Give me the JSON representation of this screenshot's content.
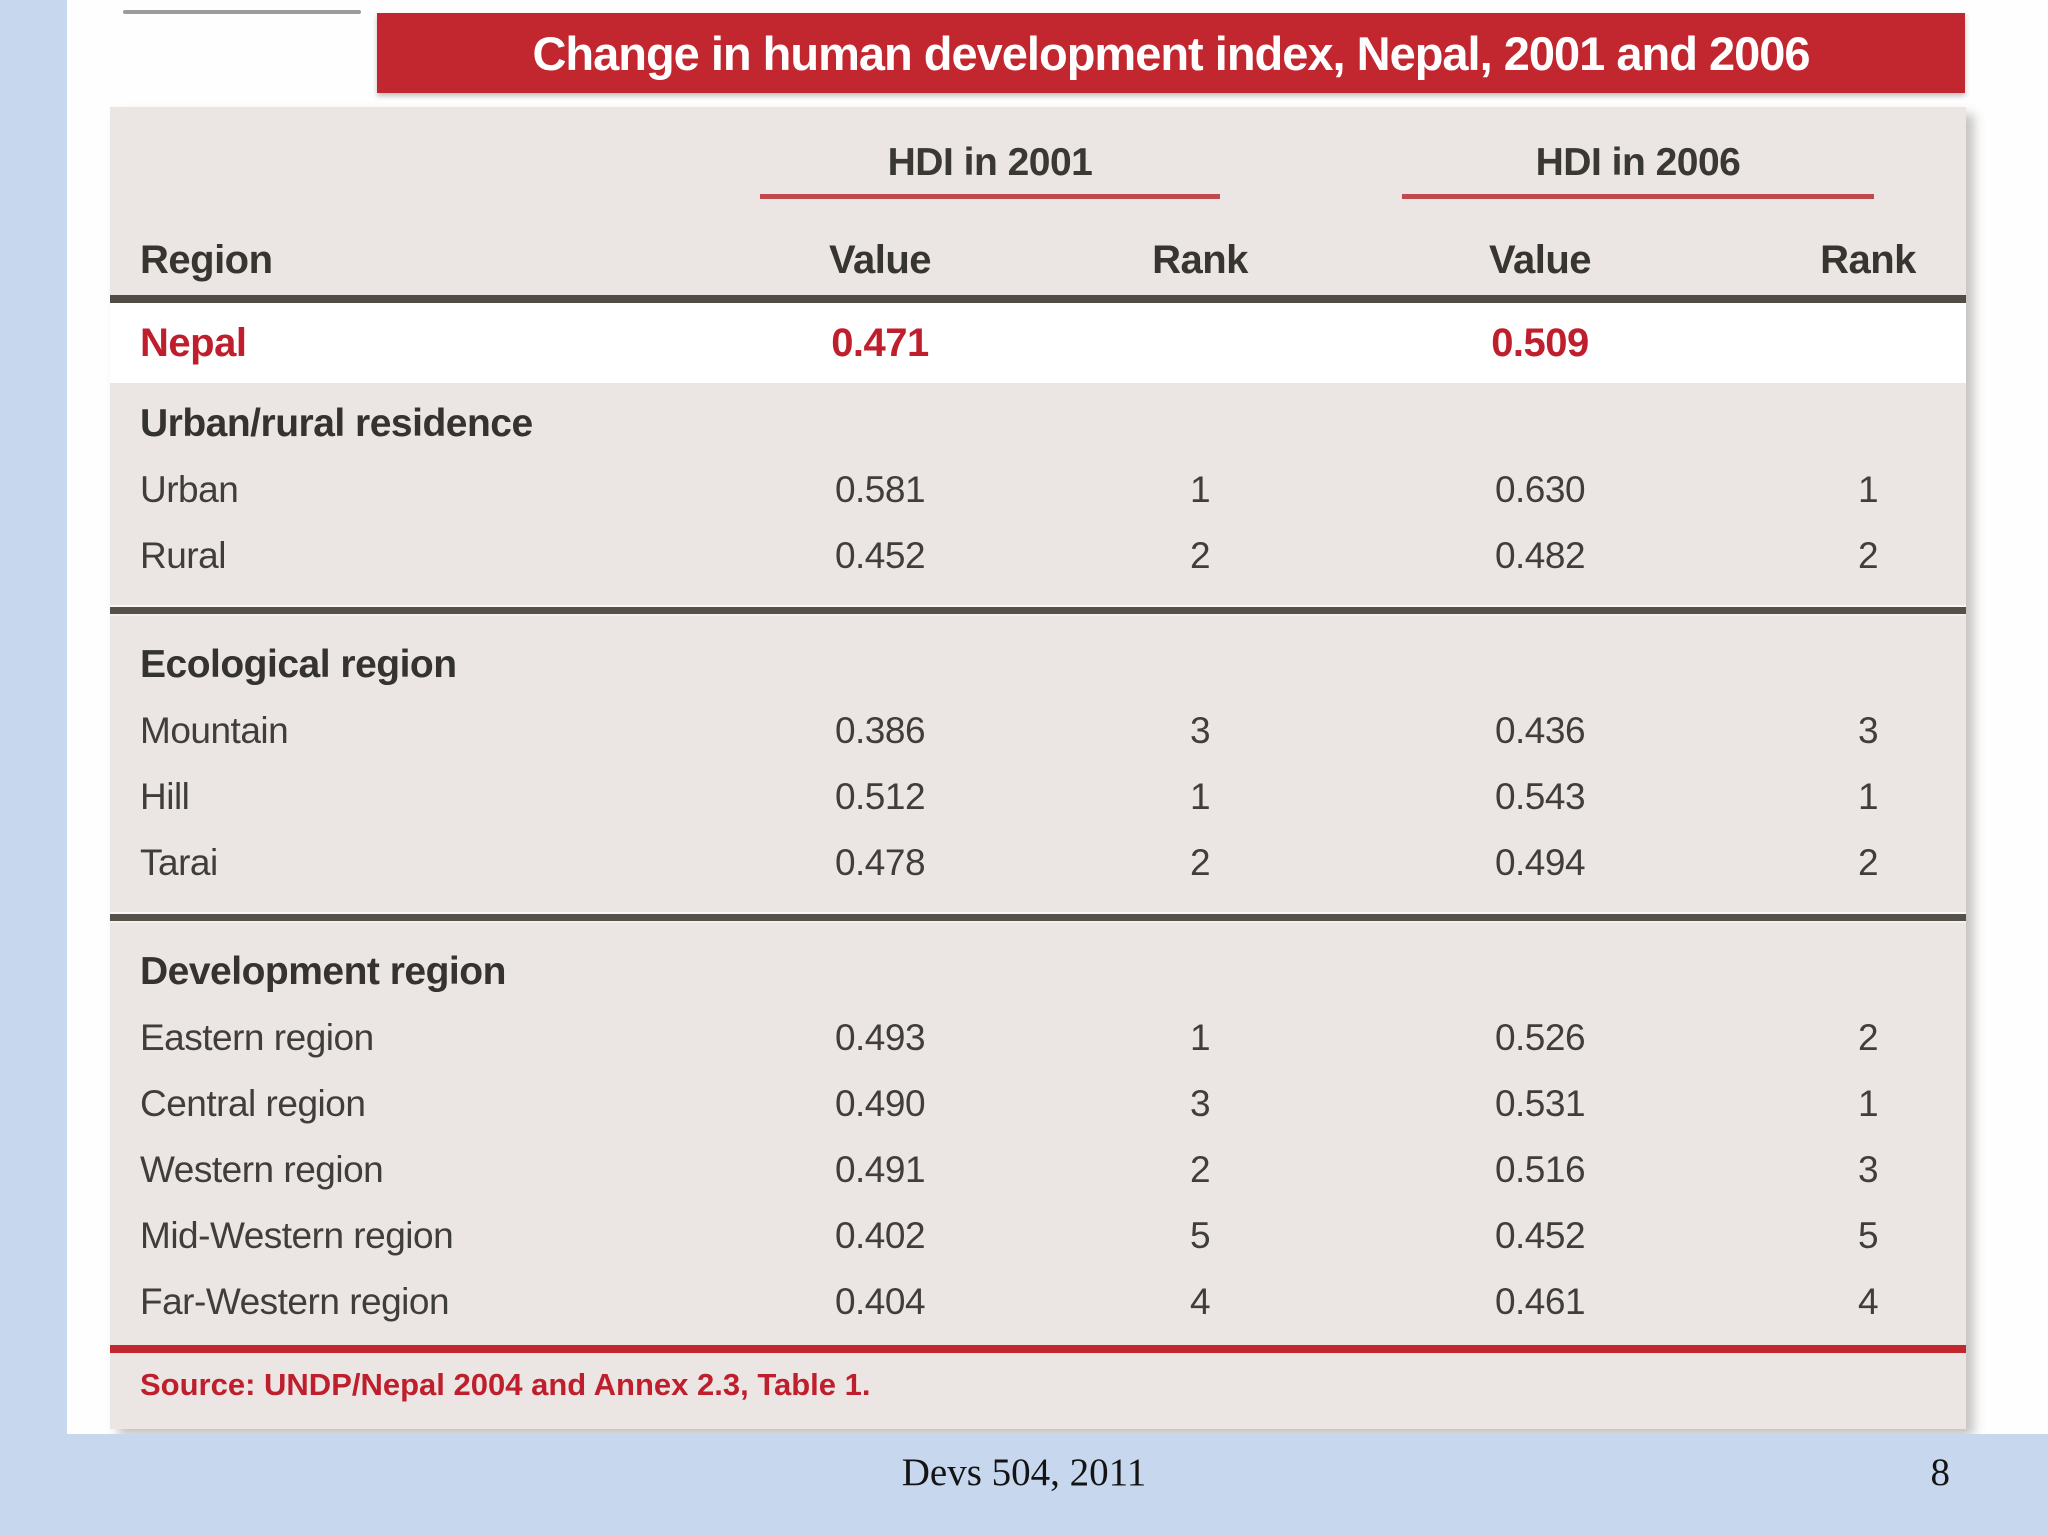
{
  "title": "Change in human development index, Nepal, 2001 and 2006",
  "table": {
    "col_region": "Region",
    "group_2001": "HDI in 2001",
    "group_2006": "HDI in 2006",
    "col_value": "Value",
    "col_rank": "Rank",
    "nepal": {
      "label": "Nepal",
      "v1": "0.471",
      "r1": "",
      "v2": "0.509",
      "r2": ""
    },
    "sections": [
      {
        "header": "Urban/rural residence",
        "rows": [
          {
            "label": "Urban",
            "v1": "0.581",
            "r1": "1",
            "v2": "0.630",
            "r2": "1"
          },
          {
            "label": "Rural",
            "v1": "0.452",
            "r1": "2",
            "v2": "0.482",
            "r2": "2"
          }
        ]
      },
      {
        "header": "Ecological region",
        "rows": [
          {
            "label": "Mountain",
            "v1": "0.386",
            "r1": "3",
            "v2": "0.436",
            "r2": "3"
          },
          {
            "label": "Hill",
            "v1": "0.512",
            "r1": "1",
            "v2": "0.543",
            "r2": "1"
          },
          {
            "label": "Tarai",
            "v1": "0.478",
            "r1": "2",
            "v2": "0.494",
            "r2": "2"
          }
        ]
      },
      {
        "header": "Development region",
        "rows": [
          {
            "label": "Eastern region",
            "v1": "0.493",
            "r1": "1",
            "v2": "0.526",
            "r2": "2"
          },
          {
            "label": "Central region",
            "v1": "0.490",
            "r1": "3",
            "v2": "0.531",
            "r2": "1"
          },
          {
            "label": "Western region",
            "v1": "0.491",
            "r1": "2",
            "v2": "0.516",
            "r2": "3"
          },
          {
            "label": "Mid-Western region",
            "v1": "0.402",
            "r1": "5",
            "v2": "0.452",
            "r2": "5"
          },
          {
            "label": "Far-Western region",
            "v1": "0.404",
            "r1": "4",
            "v2": "0.461",
            "r2": "4"
          }
        ]
      }
    ],
    "source": "Source: UNDP/Nepal 2004 and Annex 2.3, Table 1."
  },
  "footer": {
    "center": "Devs 504, 2011",
    "page_number": "8"
  },
  "colors": {
    "accent_red": "#c2262e",
    "text_red": "#bf1e2c",
    "slide_blue": "#c7d7ee",
    "table_beige": "#ebe5e3",
    "rule_dark": "#55504a",
    "text_dark": "#403e3a"
  }
}
